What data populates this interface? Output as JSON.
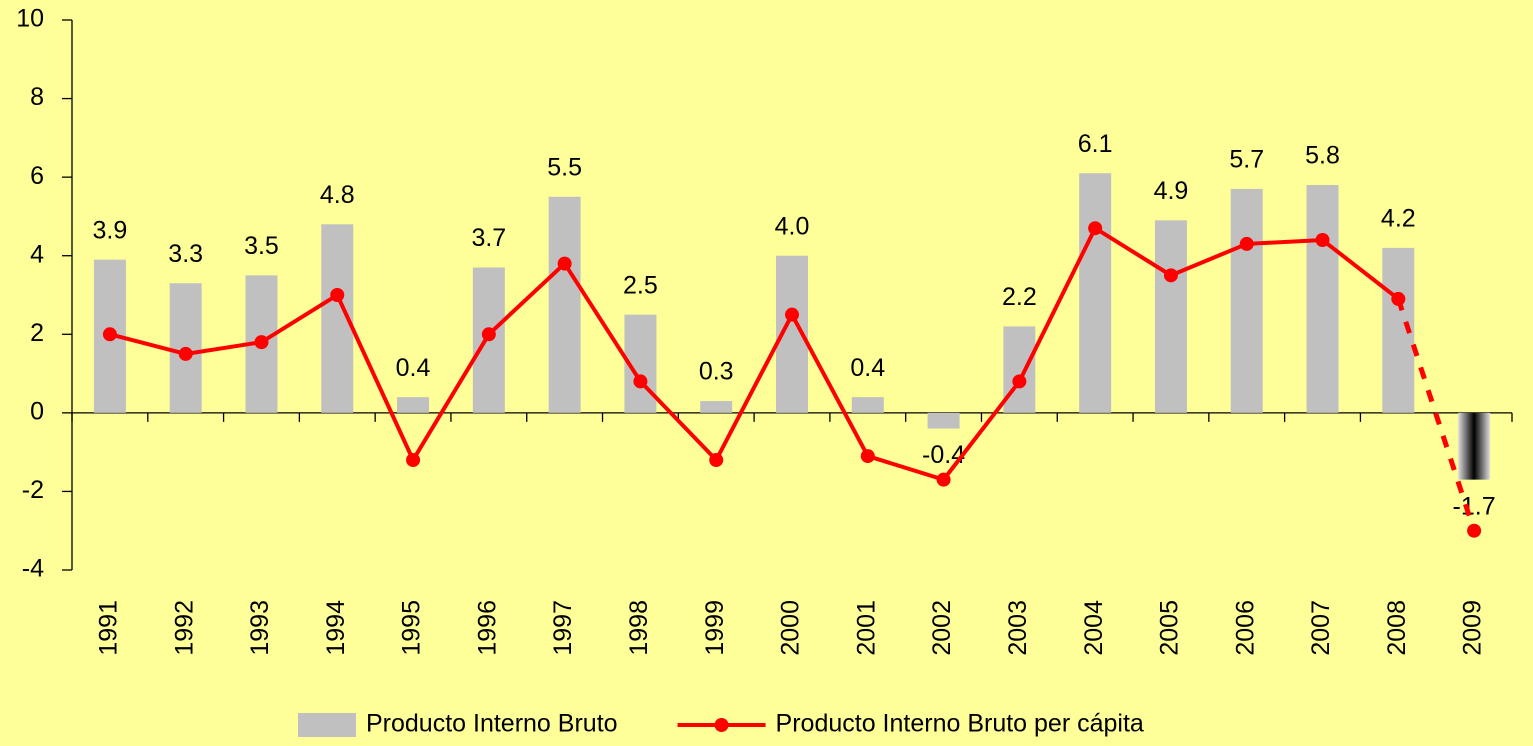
{
  "chart_data": {
    "type": "combo",
    "categories": [
      "1991",
      "1992",
      "1993",
      "1994",
      "1995",
      "1996",
      "1997",
      "1998",
      "1999",
      "2000",
      "2001",
      "2002",
      "2003",
      "2004",
      "2005",
      "2006",
      "2007",
      "2008",
      "2009"
    ],
    "series": [
      {
        "name": "Producto Interno Bruto",
        "type": "bar",
        "color": "#c0c0c0",
        "values": [
          3.9,
          3.3,
          3.5,
          4.8,
          0.4,
          3.7,
          5.5,
          2.5,
          0.3,
          4.0,
          0.4,
          -0.4,
          2.2,
          6.1,
          4.9,
          5.7,
          5.8,
          4.2,
          -1.7
        ],
        "value_labels": [
          "3.9",
          "3.3",
          "3.5",
          "4.8",
          "0.4",
          "3.7",
          "5.5",
          "2.5",
          "0.3",
          "4.0",
          "0.4",
          "-0.4",
          "2.2",
          "6.1",
          "4.9",
          "5.7",
          "5.8",
          "4.2",
          "-1.7"
        ]
      },
      {
        "name": "Producto Interno Bruto per cápita",
        "type": "line",
        "color": "#ff0000",
        "values": [
          2.0,
          1.5,
          1.8,
          3.0,
          -1.2,
          2.0,
          3.8,
          0.8,
          -1.2,
          2.5,
          -1.1,
          -1.7,
          0.8,
          4.7,
          3.5,
          4.3,
          4.4,
          2.9,
          -3.0
        ]
      }
    ],
    "projected_last": true,
    "ylim": [
      -4,
      10
    ],
    "yticks": [
      -4,
      -2,
      0,
      2,
      4,
      6,
      8,
      10
    ],
    "legend": "bottom"
  }
}
